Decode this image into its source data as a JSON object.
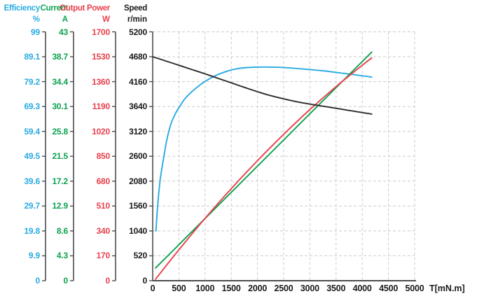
{
  "chart_data": {
    "type": "line",
    "title": "",
    "xlabel": "T[mN.m]",
    "grid": "dashed",
    "x_axis": {
      "label": "T[mN.m]",
      "min": 0,
      "max": 5000,
      "ticks": [
        "0",
        "500",
        "1000",
        "1500",
        "2000",
        "2500",
        "3000",
        "3500",
        "4000",
        "4500",
        "5000"
      ]
    },
    "axes": [
      {
        "id": "efficiency",
        "title": "Efficiency",
        "unit": "%",
        "color": "#29ABE2",
        "max": 99,
        "ticks": [
          "99",
          "89.1",
          "79.2",
          "69.3",
          "59.4",
          "49.5",
          "39.6",
          "29.7",
          "19.8",
          "9.9",
          "0"
        ]
      },
      {
        "id": "current",
        "title": "Current",
        "unit": "A",
        "color": "#0AA24F",
        "max": 43,
        "ticks": [
          "43",
          "38.7",
          "34.4",
          "30.1",
          "25.8",
          "21.5",
          "17.2",
          "12.9",
          "8.6",
          "4.3",
          "0"
        ]
      },
      {
        "id": "output-power",
        "title": "Output Power",
        "unit": "W",
        "color": "#E8414D",
        "max": 1700,
        "ticks": [
          "1700",
          "1530",
          "1360",
          "1190",
          "1020",
          "850",
          "680",
          "510",
          "340",
          "170",
          "0"
        ]
      },
      {
        "id": "speed",
        "title": "Speed",
        "unit": "r/min",
        "color": "#1A1A1A",
        "max": 5200,
        "ticks": [
          "5200",
          "4680",
          "4160",
          "3640",
          "3120",
          "2600",
          "2080",
          "1560",
          "1040",
          "520",
          "0"
        ]
      }
    ],
    "series": [
      {
        "name": "Efficiency",
        "unit": "%",
        "axis": "efficiency",
        "color": "#29ABE2",
        "points": [
          [
            63,
            19.8
          ],
          [
            75,
            24
          ],
          [
            90,
            28.5
          ],
          [
            105,
            32.5
          ],
          [
            120,
            35.8
          ],
          [
            145,
            40.5
          ],
          [
            174,
            44.5
          ],
          [
            214,
            49.5
          ],
          [
            260,
            55
          ],
          [
            307,
            59.4
          ],
          [
            350,
            62.5
          ],
          [
            400,
            65
          ],
          [
            460,
            67.5
          ],
          [
            520,
            69.4
          ],
          [
            600,
            72
          ],
          [
            700,
            74.3
          ],
          [
            850,
            77
          ],
          [
            1000,
            79.3
          ],
          [
            1200,
            81.6
          ],
          [
            1400,
            83.2
          ],
          [
            1600,
            84.3
          ],
          [
            1800,
            84.8
          ],
          [
            2100,
            85
          ],
          [
            2400,
            84.9
          ],
          [
            2700,
            84.5
          ],
          [
            3000,
            84
          ],
          [
            3300,
            83.4
          ],
          [
            3600,
            82.6
          ],
          [
            3900,
            81.8
          ],
          [
            4180,
            81
          ]
        ]
      },
      {
        "name": "Current",
        "unit": "A",
        "axis": "current",
        "color": "#0AA24F",
        "points": [
          [
            55,
            2.2
          ],
          [
            2000,
            19.8
          ],
          [
            4180,
            39.5
          ]
        ]
      },
      {
        "name": "Output Power",
        "unit": "W",
        "axis": "output-power",
        "color": "#E8414D",
        "points": [
          [
            55,
            11
          ],
          [
            500,
            211
          ],
          [
            1000,
            426
          ],
          [
            1500,
            629
          ],
          [
            2000,
            820
          ],
          [
            2500,
            1000
          ],
          [
            3000,
            1169
          ],
          [
            3500,
            1326
          ],
          [
            4000,
            1472
          ],
          [
            4180,
            1522
          ]
        ]
      },
      {
        "name": "Speed",
        "unit": "r/min",
        "axis": "speed",
        "color": "#2D2D2D",
        "points": [
          [
            0,
            4680
          ],
          [
            250,
            4592
          ],
          [
            500,
            4502
          ],
          [
            750,
            4412
          ],
          [
            1000,
            4322
          ],
          [
            1250,
            4228
          ],
          [
            1500,
            4135
          ],
          [
            1750,
            4040
          ],
          [
            2000,
            3950
          ],
          [
            2250,
            3868
          ],
          [
            2500,
            3800
          ],
          [
            2750,
            3740
          ],
          [
            3000,
            3690
          ],
          [
            3250,
            3646
          ],
          [
            3500,
            3602
          ],
          [
            3750,
            3558
          ],
          [
            4000,
            3514
          ],
          [
            4180,
            3482
          ]
        ]
      }
    ],
    "style": {
      "grid_color": "#CBCBCB",
      "axis_line_color": "#4D4D4D",
      "background": "#FFFFFF"
    }
  }
}
